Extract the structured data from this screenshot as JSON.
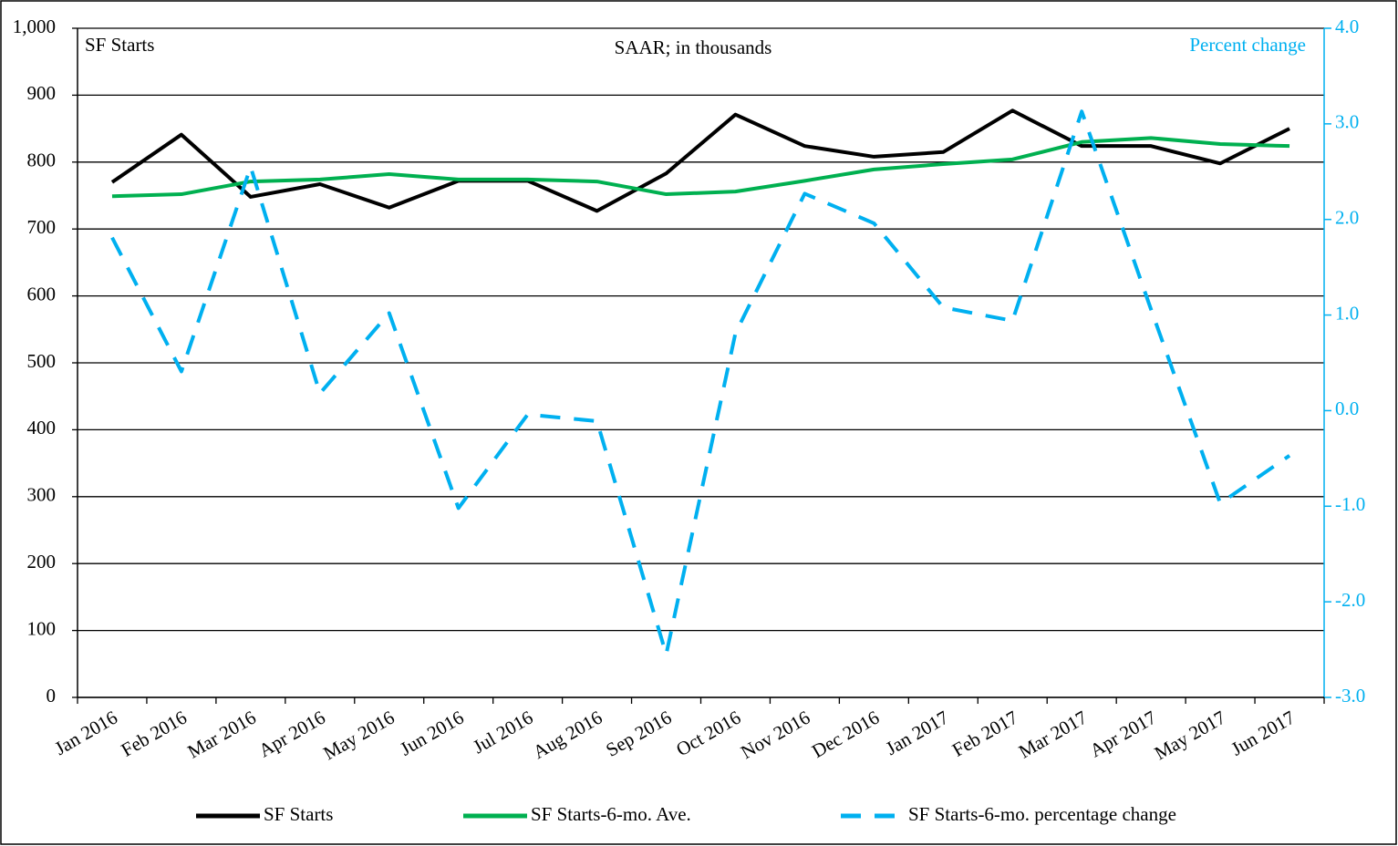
{
  "chart_data": {
    "type": "line",
    "annotation": "SF Starts",
    "subtitle": "SAAR; in thousands",
    "y2_label": "Percent change",
    "categories": [
      "Jan 2016",
      "Feb 2016",
      "Mar 2016",
      "Apr 2016",
      "May 2016",
      "Jun 2016",
      "Jul 2016",
      "Aug 2016",
      "Sep 2016",
      "Oct 2016",
      "Nov 2016",
      "Dec 2016",
      "Jan 2017",
      "Feb 2017",
      "Mar 2017",
      "Apr 2017",
      "May 2017",
      "Jun 2017"
    ],
    "series": [
      {
        "name": "SF Starts",
        "color": "#000000",
        "dashed": false,
        "values": [
          770,
          841,
          748,
          767,
          732,
          772,
          772,
          727,
          783,
          871,
          824,
          808,
          815,
          877,
          824,
          824,
          798,
          850
        ]
      },
      {
        "name": "SF Starts-6-mo. Ave.",
        "color": "#00b050",
        "dashed": false,
        "values": [
          749,
          752,
          771,
          774,
          782,
          774,
          774,
          771,
          752,
          756,
          772,
          789,
          797,
          804,
          830,
          836,
          827,
          824
        ]
      },
      {
        "name": "SF Starts-6-mo. percentage change",
        "color": "#00b0f0",
        "dashed": true,
        "axis": "y2",
        "values": [
          1.81,
          0.41,
          2.55,
          0.18,
          1.02,
          -1.02,
          -0.04,
          -0.11,
          -2.55,
          0.81,
          2.27,
          1.96,
          1.08,
          0.94,
          3.13,
          1.06,
          -0.97,
          -0.47
        ]
      }
    ],
    "ylim": [
      0,
      1000
    ],
    "yticks": [
      0,
      100,
      200,
      300,
      400,
      500,
      600,
      700,
      800,
      900,
      {
        "value": 1000,
        "label": "1,000"
      }
    ],
    "y2lim": [
      -3,
      4
    ],
    "y2ticks": [
      {
        "value": -3,
        "label": "-3.0"
      },
      {
        "value": -2,
        "label": "-2.0"
      },
      {
        "value": -1,
        "label": "-1.0"
      },
      {
        "value": 0,
        "label": "0.0"
      },
      {
        "value": 1,
        "label": "1.0"
      },
      {
        "value": 2,
        "label": "2.0"
      },
      {
        "value": 3,
        "label": "3.0"
      },
      {
        "value": 4,
        "label": "4.0"
      }
    ],
    "y2color": "#00b0f0",
    "grid": true,
    "legend": "bottom"
  }
}
